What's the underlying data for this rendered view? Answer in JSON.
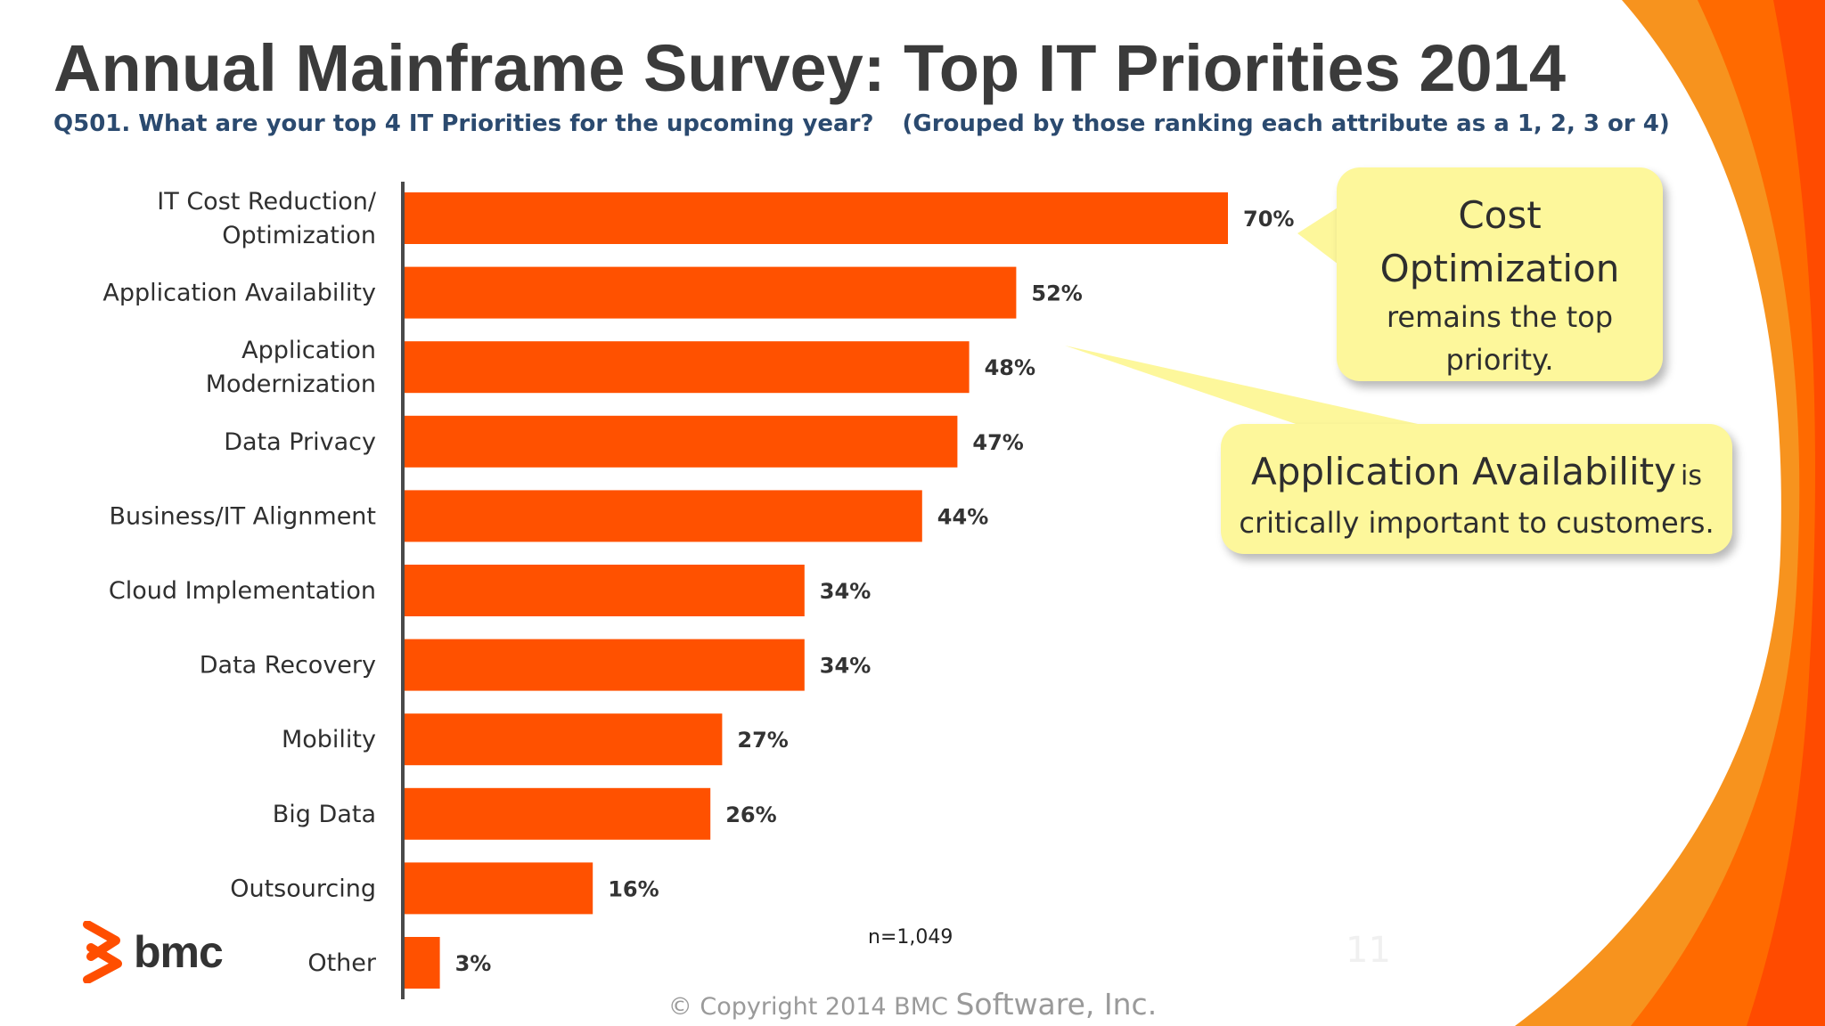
{
  "slide": {
    "title": "Annual Mainframe Survey: Top IT Priorities 2014",
    "question": "Q501. What are your top 4 IT Priorities for the upcoming year?",
    "grouping_note": "(Grouped by those ranking each attribute as a 1, 2, 3 or 4)",
    "sample_size": "n=1,049",
    "page_number": "11",
    "copyright": "© Copyright 2014 BMC",
    "copyright_rest": "Software, Inc.",
    "logo_text": "bmc"
  },
  "callouts": {
    "cost": {
      "title": "Cost Optimization",
      "body": "remains the top priority."
    },
    "availability": {
      "title": "Application Availability",
      "suffix": "is",
      "body": "critically important to customers."
    }
  },
  "colors": {
    "bar": "#ff5100",
    "swoosh": "#f7931e",
    "callout": "#fdf79b",
    "accent": "#ff4e00"
  },
  "chart_data": {
    "type": "bar",
    "orientation": "horizontal",
    "categories": [
      [
        "IT Cost Reduction/",
        "Optimization"
      ],
      [
        "Application Availability"
      ],
      [
        "Application",
        "Modernization"
      ],
      [
        "Data Privacy"
      ],
      [
        "Business/IT Alignment"
      ],
      [
        "Cloud Implementation"
      ],
      [
        "Data Recovery"
      ],
      [
        "Mobility"
      ],
      [
        "Big Data"
      ],
      [
        "Outsourcing"
      ],
      [
        "Other"
      ]
    ],
    "values": [
      70,
      52,
      48,
      47,
      44,
      34,
      34,
      27,
      26,
      16,
      3
    ],
    "value_labels": [
      "70%",
      "52%",
      "48%",
      "47%",
      "44%",
      "34%",
      "34%",
      "27%",
      "26%",
      "16%",
      "3%"
    ],
    "unit": "%",
    "xlim": [
      0,
      70
    ],
    "grid": false,
    "legend": "none"
  }
}
